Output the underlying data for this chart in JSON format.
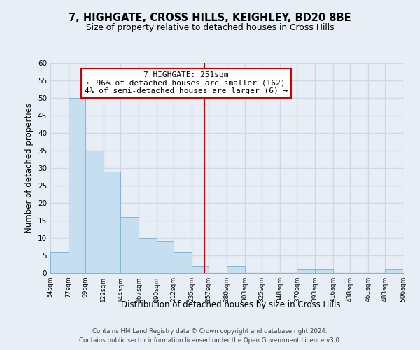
{
  "title": "7, HIGHGATE, CROSS HILLS, KEIGHLEY, BD20 8BE",
  "subtitle": "Size of property relative to detached houses in Cross Hills",
  "xlabel": "Distribution of detached houses by size in Cross Hills",
  "ylabel": "Number of detached properties",
  "bin_edges": [
    54,
    77,
    99,
    122,
    144,
    167,
    190,
    212,
    235,
    257,
    280,
    303,
    325,
    348,
    370,
    393,
    416,
    438,
    461,
    483,
    506
  ],
  "bin_labels": [
    "54sqm",
    "77sqm",
    "99sqm",
    "122sqm",
    "144sqm",
    "167sqm",
    "190sqm",
    "212sqm",
    "235sqm",
    "257sqm",
    "280sqm",
    "303sqm",
    "325sqm",
    "348sqm",
    "370sqm",
    "393sqm",
    "416sqm",
    "438sqm",
    "461sqm",
    "483sqm",
    "506sqm"
  ],
  "counts": [
    6,
    50,
    35,
    29,
    16,
    10,
    9,
    6,
    2,
    0,
    2,
    0,
    0,
    0,
    1,
    1,
    0,
    0,
    0,
    1
  ],
  "bar_color": "#c6dff0",
  "bar_edgecolor": "#8ab4d4",
  "property_line_x": 251,
  "property_line_color": "#cc0000",
  "annotation_title": "7 HIGHGATE: 251sqm",
  "annotation_line1": "← 96% of detached houses are smaller (162)",
  "annotation_line2": "4% of semi-detached houses are larger (6) →",
  "annotation_box_facecolor": "#ffffff",
  "annotation_box_edgecolor": "#cc0000",
  "ylim": [
    0,
    60
  ],
  "yticks": [
    0,
    5,
    10,
    15,
    20,
    25,
    30,
    35,
    40,
    45,
    50,
    55,
    60
  ],
  "grid_color": "#d0d8e8",
  "background_color": "#e8eef5",
  "footer1": "Contains HM Land Registry data © Crown copyright and database right 2024.",
  "footer2": "Contains public sector information licensed under the Open Government Licence v3.0."
}
